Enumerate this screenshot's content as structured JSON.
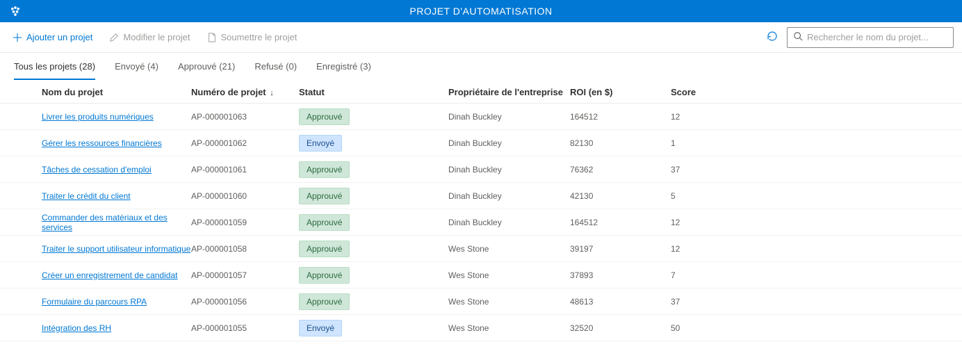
{
  "header": {
    "title": "PROJET D'AUTOMATISATION"
  },
  "toolbar": {
    "add": "Ajouter un projet",
    "modify": "Modifier le projet",
    "submit": "Soumettre le projet",
    "search_placeholder": "Rechercher le nom du projet..."
  },
  "tabs": [
    {
      "label": "Tous les projets (28)",
      "active": true
    },
    {
      "label": "Envoyé (4)",
      "active": false
    },
    {
      "label": "Approuvé (21)",
      "active": false
    },
    {
      "label": "Refusé (0)",
      "active": false
    },
    {
      "label": "Enregistré (3)",
      "active": false
    }
  ],
  "columns": {
    "name": "Nom du projet",
    "number": "Numéro de projet",
    "status": "Statut",
    "owner": "Propriétaire de l'entreprise",
    "roi": "ROI (en $)",
    "score": "Score",
    "sort_indicator": "↓"
  },
  "status_labels": {
    "approved": "Approuvé",
    "sent": "Envoyé"
  },
  "rows": [
    {
      "name": "Livrer les produits numériques",
      "number": "AP-000001063",
      "status": "approved",
      "owner": "Dinah Buckley",
      "roi": "164512",
      "score": "12"
    },
    {
      "name": "Gérer les ressources financières",
      "number": "AP-000001062",
      "status": "sent",
      "owner": "Dinah Buckley",
      "roi": "82130",
      "score": "1"
    },
    {
      "name": "Tâches de cessation d'emploi",
      "number": "AP-000001061",
      "status": "approved",
      "owner": "Dinah Buckley",
      "roi": "76362",
      "score": "37"
    },
    {
      "name": "Traiter le crédit du client",
      "number": "AP-000001060",
      "status": "approved",
      "owner": "Dinah Buckley",
      "roi": "42130",
      "score": "5"
    },
    {
      "name": "Commander des matériaux et des services",
      "number": "AP-000001059",
      "status": "approved",
      "owner": "Dinah Buckley",
      "roi": "164512",
      "score": "12"
    },
    {
      "name": "Traiter le support utilisateur informatique",
      "number": "AP-000001058",
      "status": "approved",
      "owner": "Wes Stone",
      "roi": "39197",
      "score": "12"
    },
    {
      "name": "Créer un enregistrement de candidat",
      "number": "AP-000001057",
      "status": "approved",
      "owner": "Wes Stone",
      "roi": "37893",
      "score": "7"
    },
    {
      "name": "Formulaire du parcours RPA",
      "number": "AP-000001056",
      "status": "approved",
      "owner": "Wes Stone",
      "roi": "48613",
      "score": "37"
    },
    {
      "name": "Intégration des RH",
      "number": "AP-000001055",
      "status": "sent",
      "owner": "Wes Stone",
      "roi": "32520",
      "score": "50"
    }
  ],
  "colors": {
    "brand": "#0078d4",
    "approved_bg": "#cfe7d8",
    "sent_bg": "#cfe4ff",
    "text_muted": "#605e5c"
  }
}
